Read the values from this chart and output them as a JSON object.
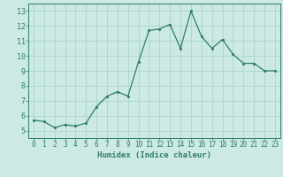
{
  "x": [
    0,
    1,
    2,
    3,
    4,
    5,
    6,
    7,
    8,
    9,
    10,
    11,
    12,
    13,
    14,
    15,
    16,
    17,
    18,
    19,
    20,
    21,
    22,
    23
  ],
  "y": [
    5.7,
    5.6,
    5.2,
    5.4,
    5.3,
    5.5,
    6.6,
    7.3,
    7.6,
    7.3,
    9.6,
    11.7,
    11.8,
    12.1,
    10.5,
    13.0,
    11.3,
    10.5,
    11.1,
    10.1,
    9.5,
    9.5,
    9.0,
    9.0
  ],
  "xlabel": "Humidex (Indice chaleur)",
  "line_color": "#2e7d6e",
  "marker_color": "#2e7d6e",
  "bg_color": "#cce9e4",
  "grid_color": "#aad4cc",
  "axis_color": "#2e7d6e",
  "tick_label_color": "#2e7d6e",
  "xlim": [
    -0.5,
    23.5
  ],
  "ylim": [
    4.5,
    13.5
  ],
  "yticks": [
    5,
    6,
    7,
    8,
    9,
    10,
    11,
    12,
    13
  ],
  "xticks": [
    0,
    1,
    2,
    3,
    4,
    5,
    6,
    7,
    8,
    9,
    10,
    11,
    12,
    13,
    14,
    15,
    16,
    17,
    18,
    19,
    20,
    21,
    22,
    23
  ],
  "xlabel_fontsize": 6.5,
  "tick_fontsize": 5.5,
  "ytick_fontsize": 6.0
}
